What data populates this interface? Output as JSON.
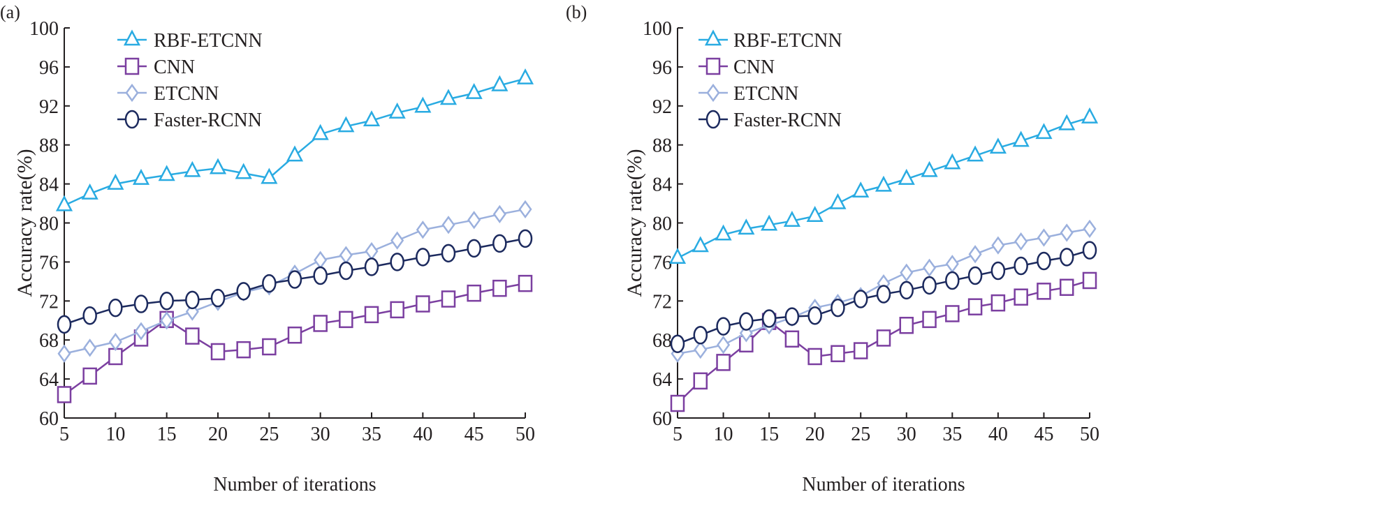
{
  "colors": {
    "RBF-ETCNN": "#29abe2",
    "CNN": "#7b3fa0",
    "ETCNN": "#9bb0dd",
    "Faster-RCNN": "#1c2a5e"
  },
  "chart_data": [
    {
      "type": "line",
      "panel_label": "(a)",
      "xlabel": "Number of iterations",
      "ylabel": "Accuracy rate(%)",
      "xlim": [
        5,
        50
      ],
      "ylim": [
        60,
        100
      ],
      "xticks": [
        5,
        10,
        15,
        20,
        25,
        30,
        35,
        40,
        45,
        50
      ],
      "yticks": [
        60,
        64,
        68,
        72,
        76,
        80,
        84,
        88,
        92,
        96,
        100
      ],
      "legend": "top-left",
      "grid": false,
      "x": [
        5,
        7.5,
        10,
        12.5,
        15,
        17.5,
        20,
        22.5,
        25,
        27.5,
        30,
        32.5,
        35,
        37.5,
        40,
        42.5,
        45,
        47.5,
        50
      ],
      "series": [
        {
          "name": "RBF-ETCNN",
          "marker": "triangle",
          "values": [
            81.8,
            83.0,
            84.0,
            84.5,
            84.9,
            85.3,
            85.6,
            85.1,
            84.6,
            86.9,
            89.1,
            89.9,
            90.5,
            91.3,
            91.9,
            92.7,
            93.3,
            94.1,
            94.8
          ]
        },
        {
          "name": "CNN",
          "marker": "square",
          "values": [
            62.4,
            64.3,
            66.3,
            68.2,
            70.1,
            68.4,
            66.8,
            67.0,
            67.3,
            68.5,
            69.7,
            70.1,
            70.6,
            71.1,
            71.7,
            72.2,
            72.8,
            73.3,
            73.8
          ]
        },
        {
          "name": "ETCNN",
          "marker": "diamond",
          "values": [
            66.6,
            67.2,
            67.8,
            68.9,
            70.0,
            70.9,
            71.9,
            72.9,
            73.5,
            74.8,
            76.2,
            76.7,
            77.1,
            78.2,
            79.3,
            79.8,
            80.3,
            80.9,
            81.4
          ]
        },
        {
          "name": "Faster-RCNN",
          "marker": "circle",
          "values": [
            69.6,
            70.5,
            71.3,
            71.7,
            72.0,
            72.1,
            72.3,
            73.0,
            73.8,
            74.2,
            74.6,
            75.1,
            75.5,
            76.0,
            76.5,
            76.9,
            77.4,
            77.9,
            78.4
          ]
        }
      ]
    },
    {
      "type": "line",
      "panel_label": "(b)",
      "xlabel": "Number of iterations",
      "ylabel": "Accuracy rate(%)",
      "xlim": [
        5,
        50
      ],
      "ylim": [
        60,
        100
      ],
      "xticks": [
        5,
        10,
        15,
        20,
        25,
        30,
        35,
        40,
        45,
        50
      ],
      "yticks": [
        60,
        64,
        68,
        72,
        76,
        80,
        84,
        88,
        92,
        96,
        100
      ],
      "legend": "top-left",
      "grid": false,
      "x": [
        5,
        7.5,
        10,
        12.5,
        15,
        17.5,
        20,
        22.5,
        25,
        27.5,
        30,
        32.5,
        35,
        37.5,
        40,
        42.5,
        45,
        47.5,
        50
      ],
      "series": [
        {
          "name": "RBF-ETCNN",
          "marker": "triangle",
          "values": [
            76.4,
            77.6,
            78.8,
            79.4,
            79.8,
            80.2,
            80.7,
            82.0,
            83.2,
            83.8,
            84.5,
            85.3,
            86.1,
            86.9,
            87.7,
            88.4,
            89.2,
            90.1,
            90.8
          ]
        },
        {
          "name": "CNN",
          "marker": "square",
          "values": [
            61.5,
            63.8,
            65.7,
            67.6,
            69.9,
            68.1,
            66.3,
            66.6,
            66.9,
            68.2,
            69.5,
            70.1,
            70.7,
            71.4,
            71.8,
            72.4,
            73.0,
            73.4,
            74.1
          ]
        },
        {
          "name": "ETCNN",
          "marker": "diamond",
          "values": [
            66.6,
            67.0,
            67.5,
            68.7,
            69.5,
            70.3,
            71.3,
            71.8,
            72.5,
            73.8,
            74.9,
            75.4,
            75.8,
            76.8,
            77.7,
            78.1,
            78.5,
            79.0,
            79.4
          ]
        },
        {
          "name": "Faster-RCNN",
          "marker": "circle",
          "values": [
            67.6,
            68.5,
            69.4,
            69.9,
            70.2,
            70.4,
            70.5,
            71.3,
            72.2,
            72.7,
            73.1,
            73.6,
            74.1,
            74.6,
            75.1,
            75.6,
            76.1,
            76.5,
            77.2
          ]
        }
      ]
    }
  ]
}
